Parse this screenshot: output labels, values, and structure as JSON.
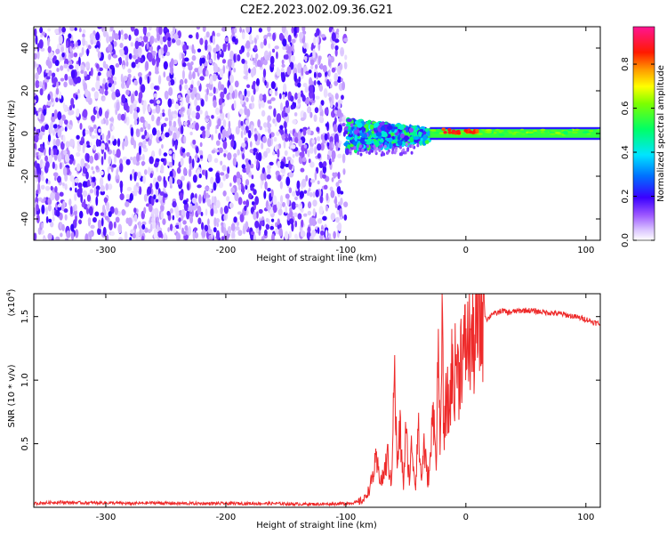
{
  "figure_title": "C2E2.2023.002.09.36.G21",
  "colors": {
    "snr_line": "#ee2a2a",
    "spectrogram_scatter": "#7a1fff",
    "axis": "#000000"
  },
  "chart_data": [
    {
      "type": "heatmap",
      "title": "C2E2.2023.002.09.36.G21",
      "xlabel": "Height of straight line (km)",
      "ylabel": "Frequency (Hz)",
      "xlim": [
        -360,
        112
      ],
      "ylim": [
        -50,
        50
      ],
      "x_ticks": [
        -300,
        -200,
        -100,
        0,
        100
      ],
      "y_ticks": [
        -40,
        -20,
        0,
        20,
        40
      ],
      "grid": false,
      "colorbar": {
        "label": "Normalized spectral amplitude",
        "range": [
          0.0,
          0.97
        ],
        "ticks": [
          0.0,
          0.2,
          0.4,
          0.6,
          0.8
        ],
        "colormap": [
          "#ffffff",
          "#c49bff",
          "#7a1fff",
          "#1a00ff",
          "#0090ff",
          "#00ffff",
          "#00ff44",
          "#ffff00",
          "#ff8c00",
          "#ff0000",
          "#ff1493"
        ]
      },
      "regions": [
        {
          "x_range": [
            -360,
            -100
          ],
          "frequency_range": [
            -50,
            50
          ],
          "amplitude": 0.08
        },
        {
          "x_range": [
            -100,
            -30
          ],
          "frequency_range": [
            -6,
            6
          ],
          "amplitude": 0.3
        },
        {
          "x_range": [
            -30,
            112
          ],
          "frequency_range": [
            -3,
            3
          ],
          "amplitude": 0.55
        },
        {
          "x_range": [
            -20,
            10
          ],
          "frequency_range": [
            0,
            2
          ],
          "amplitude": 0.9
        }
      ]
    },
    {
      "type": "line",
      "xlabel": "Height of straight line (km)",
      "ylabel": "SNR (10 * v/v)",
      "y_multiplier": "(x10",
      "y_multiplier_exp": "4",
      "xlim": [
        -360,
        112
      ],
      "ylim": [
        0,
        16800
      ],
      "x_ticks": [
        -300,
        -200,
        -100,
        0,
        100
      ],
      "y_ticks": [
        5000,
        10000,
        15000
      ],
      "y_tick_labels": [
        "0.5",
        "1.0",
        "1.5"
      ],
      "grid": false,
      "series": [
        {
          "x": [
            -360,
            -340,
            -320,
            -300,
            -280,
            -260,
            -240,
            -220,
            -200,
            -180,
            -160,
            -140,
            -120,
            -100,
            -90,
            -85,
            -80,
            -75,
            -70,
            -65,
            -62,
            -60,
            -57,
            -55,
            -52,
            -50,
            -47,
            -45,
            -42,
            -40,
            -37,
            -35,
            -32,
            -30,
            -28,
            -26,
            -25,
            -23,
            -21,
            -20,
            -18,
            -16,
            -14,
            -12,
            -10,
            -8,
            -6,
            -4,
            -2,
            0,
            2,
            4,
            6,
            8,
            10,
            12,
            14,
            15,
            16,
            18,
            20,
            22,
            25,
            30,
            35,
            40,
            50,
            60,
            70,
            80,
            90,
            100,
            105,
            112
          ],
          "y": [
            300,
            400,
            350,
            350,
            300,
            350,
            300,
            300,
            300,
            300,
            300,
            250,
            250,
            300,
            400,
            600,
            1500,
            3500,
            2000,
            4000,
            1500,
            11300,
            3000,
            6200,
            1800,
            5800,
            2200,
            5000,
            1500,
            6500,
            2000,
            5000,
            2200,
            3000,
            6500,
            8000,
            3000,
            12000,
            4000,
            13600,
            5500,
            9000,
            7000,
            11000,
            9500,
            12000,
            10000,
            12500,
            11500,
            13000,
            12800,
            13200,
            12500,
            13500,
            13800,
            14200,
            14500,
            16800,
            15000,
            14800,
            15000,
            15300,
            15200,
            15500,
            15300,
            15400,
            15500,
            15400,
            15300,
            15200,
            15000,
            14800,
            14600,
            14400
          ]
        }
      ]
    }
  ]
}
